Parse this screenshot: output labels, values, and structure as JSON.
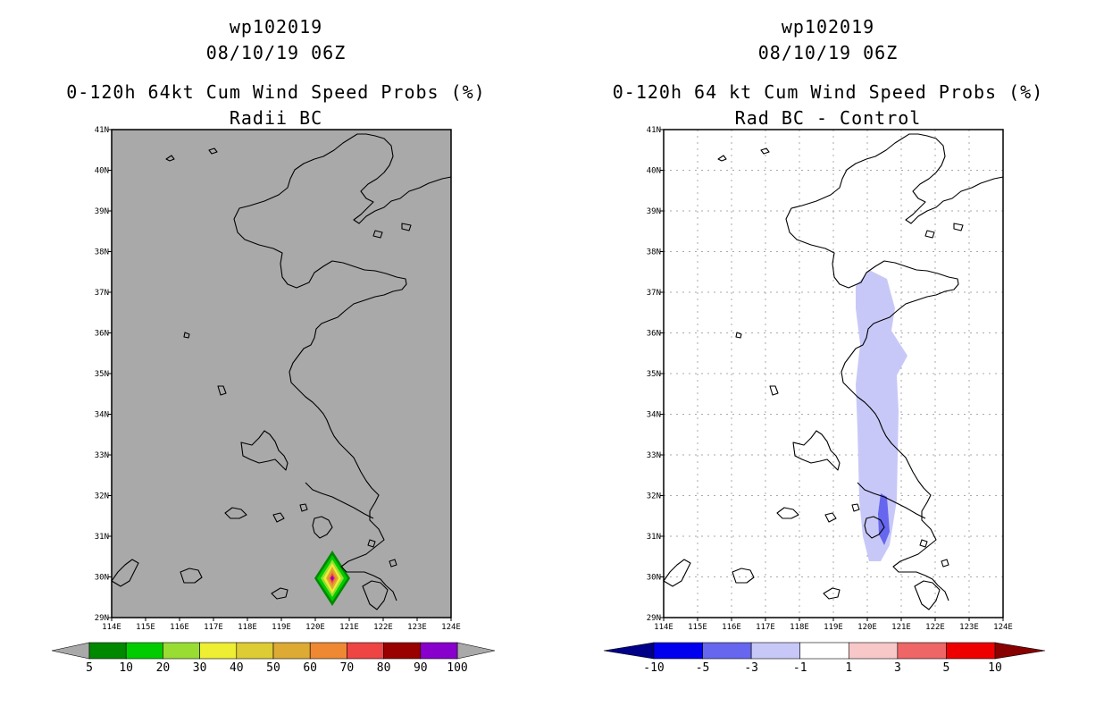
{
  "left_panel": {
    "title_line1": "wp102019",
    "title_line2": "08/10/19 06Z",
    "title_line3": "0-120h 64kt Cum Wind Speed Probs (%)",
    "title_line4": "Radii BC",
    "background_color": "#a9a9a9",
    "colorbar": {
      "colors": [
        "#008800",
        "#00cc00",
        "#99dd33",
        "#eeee33",
        "#ddcc33",
        "#ddaa33",
        "#ee8833",
        "#ee4444",
        "#990000",
        "#8800cc"
      ],
      "under_color": "#a9a9a9",
      "over_color": "#a9a9a9",
      "labels": [
        "5",
        "10",
        "20",
        "30",
        "40",
        "50",
        "60",
        "70",
        "80",
        "90",
        "100"
      ]
    }
  },
  "right_panel": {
    "title_line1": "wp102019",
    "title_line2": "08/10/19 06Z",
    "title_line3": "0-120h 64 kt Cum Wind Speed Probs (%)",
    "title_line4": "Rad BC - Control",
    "background_color": "#ffffff",
    "colorbar": {
      "colors": [
        "#0000ee",
        "#6666ee",
        "#c8c8f8",
        "#ffffff",
        "#f8c8c8",
        "#ee6666",
        "#ee0000"
      ],
      "under_color": "#000088",
      "over_color": "#880000",
      "labels": [
        "-10",
        "-5",
        "-3",
        "-1",
        "1",
        "3",
        "5",
        "10"
      ]
    }
  },
  "axes": {
    "lon_ticks": [
      "114E",
      "115E",
      "116E",
      "117E",
      "118E",
      "119E",
      "120E",
      "121E",
      "122E",
      "123E",
      "124E"
    ],
    "lat_ticks": [
      "41N",
      "40N",
      "39N",
      "38N",
      "37N",
      "36N",
      "35N",
      "34N",
      "33N",
      "32N",
      "31N",
      "30N",
      "29N"
    ],
    "lon_range": [
      114,
      124
    ],
    "lat_range": [
      29,
      41
    ]
  },
  "map_features": {
    "wind_prob_diamond_center": {
      "lon": 120.55,
      "lat": 30.0
    },
    "difference_region_color": "#c8c8f8",
    "difference_core_color": "#6666ee"
  }
}
